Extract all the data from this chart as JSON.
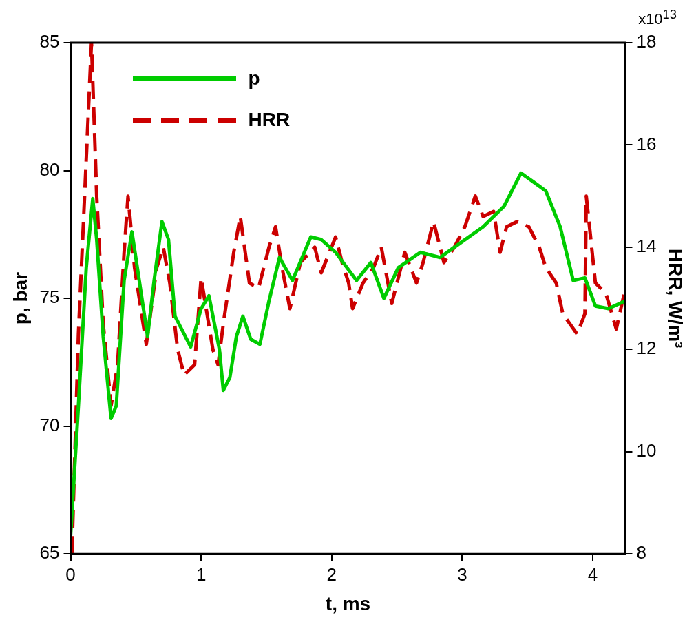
{
  "chart_data": {
    "type": "line",
    "xlabel": "t, ms",
    "ylabel": "p, bar",
    "y2label": "HRR, W/m³",
    "annotations": [
      "x10$^{13}$"
    ],
    "xlim": [
      0,
      4.25
    ],
    "xticks": [
      0,
      1,
      2,
      3,
      4
    ],
    "ylim": [
      65,
      85
    ],
    "yticks": [
      65,
      70,
      75,
      80,
      85
    ],
    "y2lim": [
      8,
      18
    ],
    "y2ticks": [
      8,
      10,
      12,
      14,
      16,
      18
    ],
    "grid": false,
    "legend": "top left",
    "marker": "none",
    "series": [
      {
        "name": "p",
        "color": "#00cc00",
        "line_style": "solid",
        "x": [
          0,
          0.06,
          0.12,
          0.17,
          0.2,
          0.25,
          0.31,
          0.35,
          0.41,
          0.47,
          0.52,
          0.59,
          0.64,
          0.7,
          0.75,
          0.8,
          0.92,
          1.0,
          1.06,
          1.14,
          1.17,
          1.22,
          1.27,
          1.32,
          1.38,
          1.45,
          1.52,
          1.6,
          1.7,
          1.84,
          1.92,
          2.03,
          2.19,
          2.3,
          2.4,
          2.51,
          2.68,
          2.83,
          2.94,
          3.16,
          3.32,
          3.45,
          3.56,
          3.64,
          3.75,
          3.85,
          3.94,
          4.02,
          4.12,
          4.25
        ],
        "values": [
          65.7,
          70.8,
          76.2,
          78.9,
          77.3,
          73.5,
          70.3,
          70.8,
          75.7,
          77.6,
          75.9,
          73.5,
          75.7,
          78.0,
          77.3,
          74.3,
          73.1,
          74.6,
          75.1,
          73.0,
          71.4,
          71.9,
          73.5,
          74.3,
          73.4,
          73.2,
          74.9,
          76.6,
          75.7,
          77.4,
          77.3,
          76.8,
          75.7,
          76.4,
          75.0,
          76.2,
          76.8,
          76.6,
          77.0,
          77.8,
          78.6,
          79.9,
          79.5,
          79.2,
          77.8,
          75.7,
          75.8,
          74.7,
          74.6,
          74.9
        ]
      },
      {
        "name": "HRR",
        "color": "#cc0000",
        "line_style": "dashed",
        "axis": "y2",
        "x": [
          0.01,
          0.06,
          0.16,
          0.2,
          0.25,
          0.31,
          0.36,
          0.41,
          0.44,
          0.49,
          0.58,
          0.66,
          0.71,
          0.76,
          0.82,
          0.87,
          0.95,
          1.0,
          1.09,
          1.13,
          1.17,
          1.25,
          1.3,
          1.37,
          1.44,
          1.52,
          1.57,
          1.62,
          1.68,
          1.76,
          1.87,
          1.92,
          2.03,
          2.08,
          2.13,
          2.16,
          2.24,
          2.32,
          2.38,
          2.46,
          2.56,
          2.65,
          2.7,
          2.78,
          2.86,
          2.94,
          3.02,
          3.1,
          3.16,
          3.24,
          3.29,
          3.34,
          3.42,
          3.51,
          3.59,
          3.64,
          3.72,
          3.77,
          3.88,
          3.94,
          3.95,
          4.02,
          4.1,
          4.18,
          4.25
        ],
        "values": [
          8.0,
          12.3,
          18.0,
          15.0,
          12.5,
          10.9,
          11.7,
          13.9,
          15.0,
          13.6,
          12.1,
          13.6,
          14.0,
          13.3,
          12.0,
          11.5,
          11.7,
          13.4,
          12.0,
          11.7,
          12.5,
          13.9,
          14.6,
          13.3,
          13.2,
          14.0,
          14.4,
          13.6,
          12.8,
          13.7,
          14.0,
          13.5,
          14.2,
          13.7,
          13.3,
          12.8,
          13.3,
          13.6,
          14.0,
          12.9,
          13.9,
          13.3,
          13.7,
          14.5,
          13.7,
          14.0,
          14.4,
          15.0,
          14.6,
          14.7,
          13.9,
          14.4,
          14.5,
          14.4,
          14.0,
          13.6,
          13.3,
          12.7,
          12.3,
          12.7,
          15.0,
          13.3,
          13.1,
          12.4,
          13.2
        ]
      }
    ]
  }
}
